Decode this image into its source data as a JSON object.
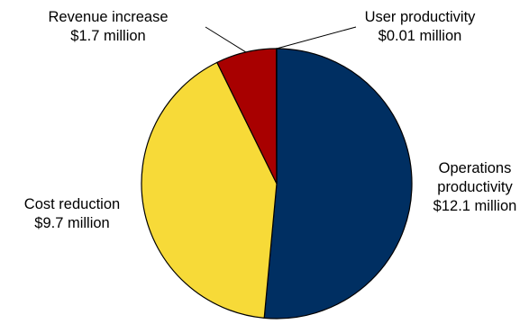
{
  "chart_data": {
    "type": "pie",
    "start_angle_deg": 0,
    "direction": "clockwise",
    "slices": [
      {
        "name": "Operations productivity",
        "value": 12.1,
        "value_text": "$12.1 million",
        "label_lines": [
          "Operations",
          "productivity",
          "$12.1 million"
        ],
        "color": "#002F62"
      },
      {
        "name": "Cost reduction",
        "value": 9.7,
        "value_text": "$9.7 million",
        "label_lines": [
          "Cost reduction",
          "$9.7 million"
        ],
        "color": "#F7DA38"
      },
      {
        "name": "Revenue increase",
        "value": 1.7,
        "value_text": "$1.7 million",
        "label_lines": [
          "Revenue increase",
          "$1.7 million"
        ],
        "color": "#A80000"
      },
      {
        "name": "User productivity",
        "value": 0.01,
        "value_text": "$0.01 million",
        "label_lines": [
          "User productivity",
          "$0.01 million"
        ],
        "color": "#7F7F7F"
      }
    ]
  }
}
